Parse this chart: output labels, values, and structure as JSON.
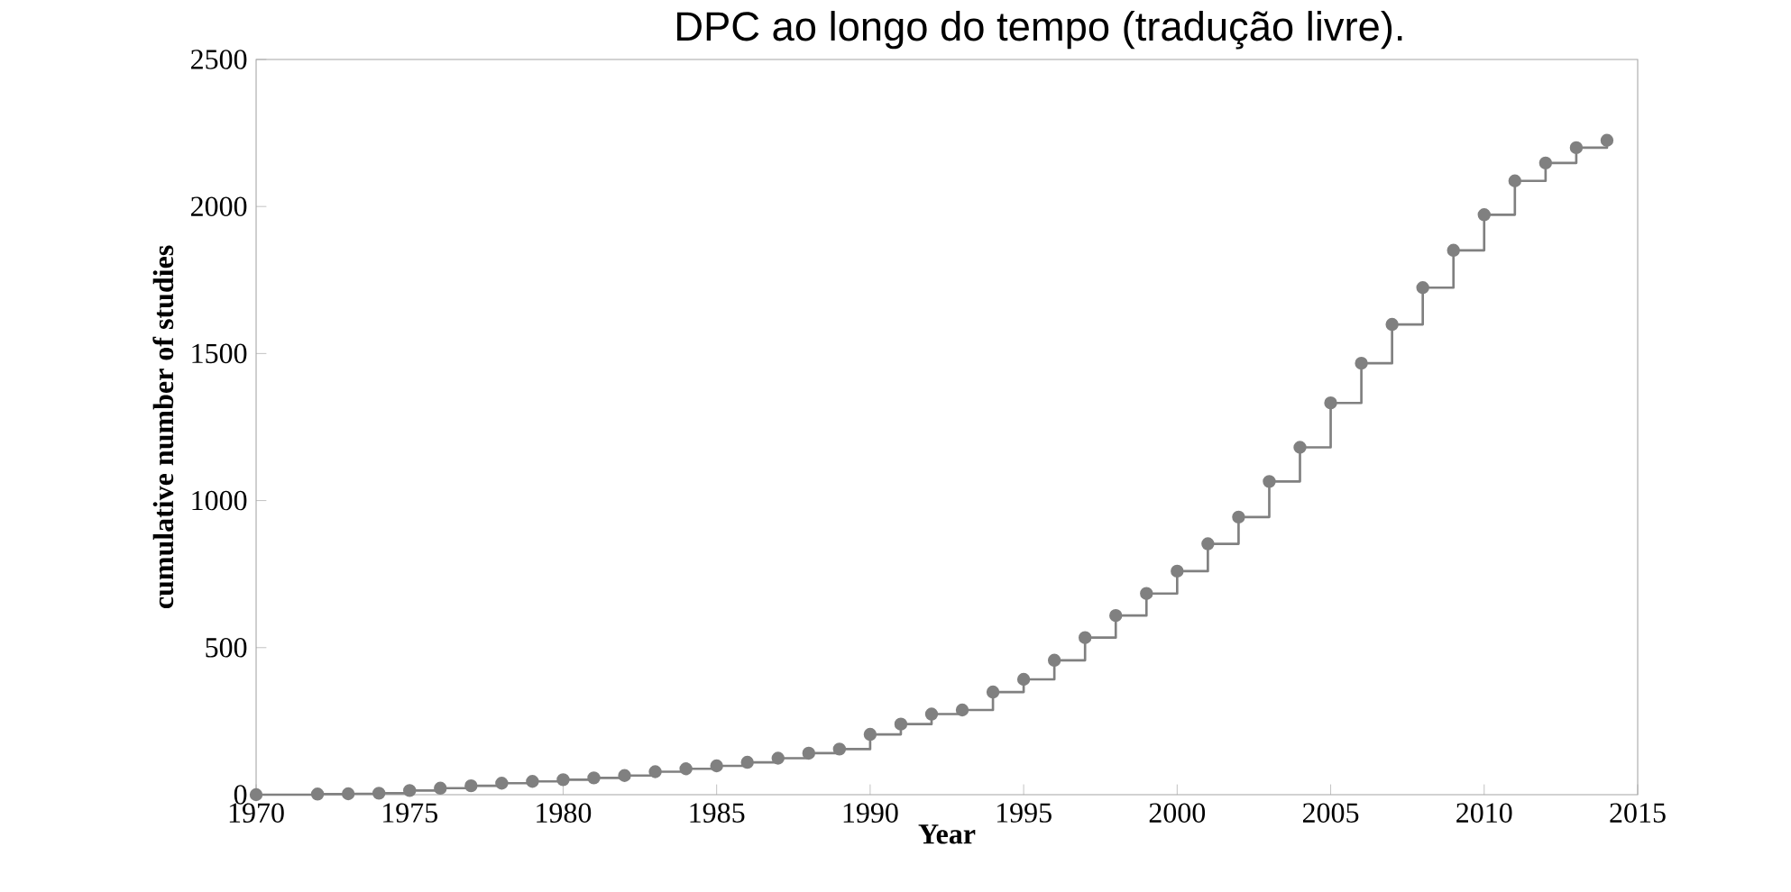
{
  "chart_data": {
    "type": "step",
    "title": "DPC ao longo do tempo (tradução livre).",
    "xlabel": "Year",
    "ylabel": "cumulative number of studies",
    "x": [
      1970,
      1972,
      1973,
      1974,
      1975,
      1976,
      1977,
      1978,
      1979,
      1980,
      1981,
      1982,
      1983,
      1984,
      1985,
      1986,
      1987,
      1988,
      1989,
      1990,
      1991,
      1992,
      1993,
      1994,
      1995,
      1996,
      1997,
      1998,
      1999,
      2000,
      2001,
      2002,
      2003,
      2004,
      2005,
      2006,
      2007,
      2008,
      2009,
      2010,
      2011,
      2012,
      2013,
      2014
    ],
    "series": [
      {
        "color": "#808080",
        "values": [
          0,
          2,
          3,
          5,
          14,
          22,
          30,
          39,
          45,
          51,
          57,
          65,
          78,
          88,
          98,
          110,
          124,
          141,
          155,
          205,
          240,
          274,
          288,
          349,
          392,
          457,
          534,
          609,
          684,
          760,
          853,
          944,
          1065,
          1181,
          1332,
          1467,
          1599,
          1724,
          1851,
          1972,
          2087,
          2148,
          2200,
          2225
        ]
      }
    ],
    "xlim": [
      1970,
      2015
    ],
    "xticks": [
      1970,
      1975,
      1980,
      1985,
      1990,
      1995,
      2000,
      2005,
      2010,
      2015
    ],
    "ylim": [
      0,
      2500
    ],
    "yticks": [
      0,
      500,
      1000,
      1500,
      2000,
      2500
    ],
    "grid": false,
    "marker": "circle",
    "line_style": "solid"
  }
}
